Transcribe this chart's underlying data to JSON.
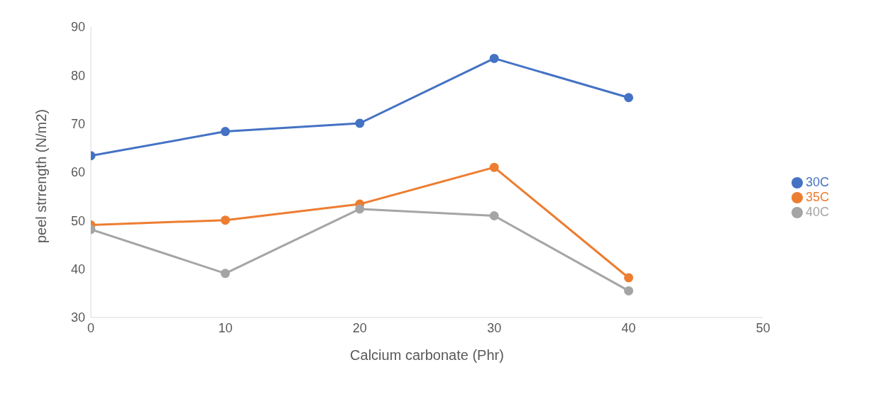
{
  "chart_data": {
    "type": "line",
    "xlabel": "Calcium carbonate (Phr)",
    "ylabel": "peel strrength (N/m2)",
    "x": [
      0,
      10,
      20,
      30,
      40
    ],
    "series": [
      {
        "name": "30C",
        "color": "#4472c4",
        "values": [
          63.4,
          68.4,
          70.1,
          83.5,
          75.4
        ]
      },
      {
        "name": "35C",
        "color": "#ed7d31",
        "values": [
          49.1,
          50.1,
          53.4,
          61.0,
          38.2
        ]
      },
      {
        "name": "40C",
        "color": "#a5a5a5",
        "values": [
          48.2,
          39.1,
          52.4,
          51.0,
          35.5
        ]
      }
    ],
    "xlim": [
      0,
      50
    ],
    "xticks": [
      0,
      10,
      20,
      30,
      40,
      50
    ],
    "ylim": [
      30,
      90
    ],
    "yticks": [
      30,
      40,
      50,
      60,
      70,
      80,
      90
    ],
    "grid": false,
    "legend": "right",
    "marker": "circle",
    "line_style": "solid"
  }
}
